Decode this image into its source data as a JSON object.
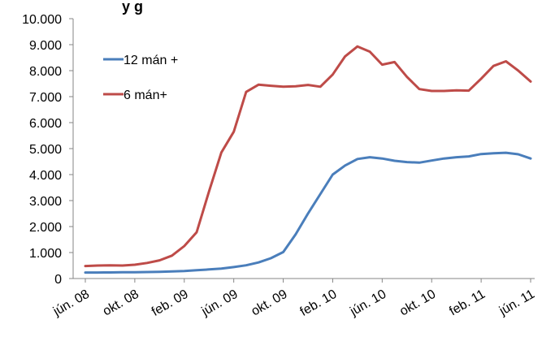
{
  "partial_title": "y      g",
  "chart_data": {
    "type": "line",
    "title": "",
    "xlabel": "",
    "ylabel": "",
    "ylim": [
      0,
      10000
    ],
    "y_ticks": [
      0,
      1000,
      2000,
      3000,
      4000,
      5000,
      6000,
      7000,
      8000,
      9000,
      10000
    ],
    "y_tick_labels": [
      "0",
      "1.000",
      "2.000",
      "3.000",
      "4.000",
      "5.000",
      "6.000",
      "7.000",
      "8.000",
      "9.000",
      "10.000"
    ],
    "x_ticks": [
      0,
      4,
      8,
      12,
      16,
      20,
      24,
      28,
      32,
      36
    ],
    "x_tick_labels": [
      "jún. 08",
      "okt. 08",
      "feb. 09",
      "jún. 09",
      "okt. 09",
      "feb. 10",
      "jún. 10",
      "okt. 10",
      "feb. 11",
      "jún. 11"
    ],
    "x": [
      0,
      1,
      2,
      3,
      4,
      5,
      6,
      7,
      8,
      9,
      10,
      11,
      12,
      13,
      14,
      15,
      16,
      17,
      18,
      19,
      20,
      21,
      22,
      23,
      24,
      25,
      26,
      27,
      28,
      29,
      30,
      31,
      32,
      33,
      34,
      35,
      36
    ],
    "grid": false,
    "legend_position": "top-left",
    "series": [
      {
        "name": "12 mán +",
        "color": "#4a7ebb",
        "values": [
          230,
          230,
          235,
          240,
          245,
          250,
          260,
          275,
          290,
          320,
          350,
          380,
          440,
          510,
          620,
          780,
          1020,
          1700,
          2500,
          3250,
          4000,
          4350,
          4600,
          4670,
          4620,
          4530,
          4480,
          4460,
          4540,
          4620,
          4670,
          4700,
          4790,
          4820,
          4840,
          4780,
          4620
        ]
      },
      {
        "name": "6 mán+",
        "color": "#be4b48",
        "values": [
          480,
          500,
          510,
          500,
          530,
          600,
          700,
          880,
          1250,
          1780,
          3350,
          4850,
          5650,
          7180,
          7460,
          7420,
          7380,
          7400,
          7450,
          7380,
          7850,
          8550,
          8930,
          8730,
          8230,
          8330,
          7760,
          7290,
          7220,
          7220,
          7240,
          7230,
          7690,
          8180,
          8360,
          8000,
          7580
        ]
      }
    ]
  }
}
